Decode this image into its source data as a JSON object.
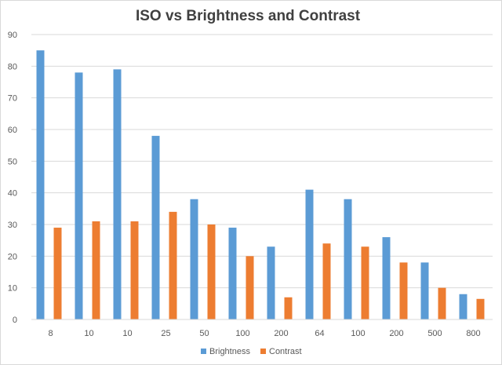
{
  "chart_data": {
    "type": "bar",
    "title": "ISO vs Brightness and Contrast",
    "xlabel": "",
    "ylabel": "",
    "categories": [
      "8",
      "10",
      "10",
      "25",
      "50",
      "100",
      "200",
      "64",
      "100",
      "200",
      "500",
      "800"
    ],
    "series": [
      {
        "name": "Brightness",
        "color": "#5b9bd5",
        "values": [
          85,
          78,
          79,
          58,
          38,
          29,
          23,
          41,
          38,
          26,
          18,
          8
        ]
      },
      {
        "name": "Contrast",
        "color": "#ed7d31",
        "values": [
          29,
          31,
          31,
          34,
          30,
          20,
          7,
          24,
          23,
          18,
          10,
          6.5
        ]
      }
    ],
    "ylim": [
      0,
      90
    ],
    "yticks": [
      0,
      10,
      20,
      30,
      40,
      50,
      60,
      70,
      80,
      90
    ],
    "grid": true,
    "legend_position": "bottom"
  }
}
